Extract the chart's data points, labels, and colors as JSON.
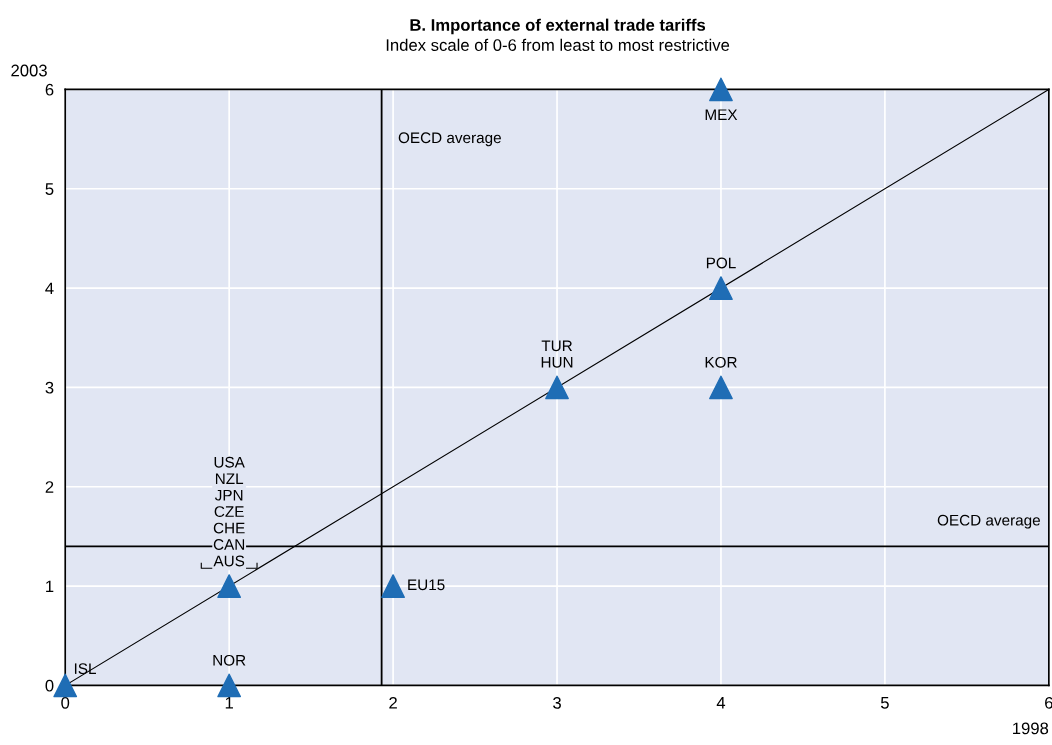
{
  "chart_data": {
    "type": "scatter",
    "title": "B. Importance of external trade tariffs",
    "subtitle": "Index scale of 0-6 from least to most restrictive",
    "xlabel": "1998",
    "ylabel": "2003",
    "x": [
      0,
      1,
      1,
      2,
      3,
      4,
      4,
      4
    ],
    "series": [
      {
        "color": "#1f6db5",
        "values": [
          0,
          0,
          1,
          1,
          3,
          3,
          4,
          6
        ]
      },
      {
        "type": "line",
        "color": "#000000",
        "x": [
          0,
          6
        ],
        "values": [
          0,
          6
        ],
        "marker": "none"
      }
    ],
    "marker": "triangle",
    "xlim": [
      0,
      6
    ],
    "ylim": [
      0,
      6
    ],
    "xticks": [
      0,
      1,
      2,
      3,
      4,
      5,
      6
    ],
    "yticks": [
      0,
      1,
      2,
      3,
      4,
      5,
      6
    ],
    "grid": true,
    "ref_lines": [
      {
        "axis": "x",
        "value": 1.93,
        "label": "OECD average",
        "color": "#000000"
      },
      {
        "axis": "y",
        "value": 1.4,
        "label": "OECD average",
        "color": "#000000"
      }
    ],
    "annotations": [
      {
        "text": "ISL",
        "x": 0,
        "y": 0
      },
      {
        "text": "NOR",
        "x": 1,
        "y": 0
      },
      {
        "text": "USA\nNZL\nJPN\nCZE\nCHE\nCAN\nAUS",
        "x": 1,
        "y": 1
      },
      {
        "text": "EU15",
        "x": 2,
        "y": 1
      },
      {
        "text": "TUR\nHUN",
        "x": 3,
        "y": 3
      },
      {
        "text": "KOR",
        "x": 4,
        "y": 3
      },
      {
        "text": "POL",
        "x": 4,
        "y": 4
      },
      {
        "text": "MEX",
        "x": 4,
        "y": 6
      }
    ]
  }
}
